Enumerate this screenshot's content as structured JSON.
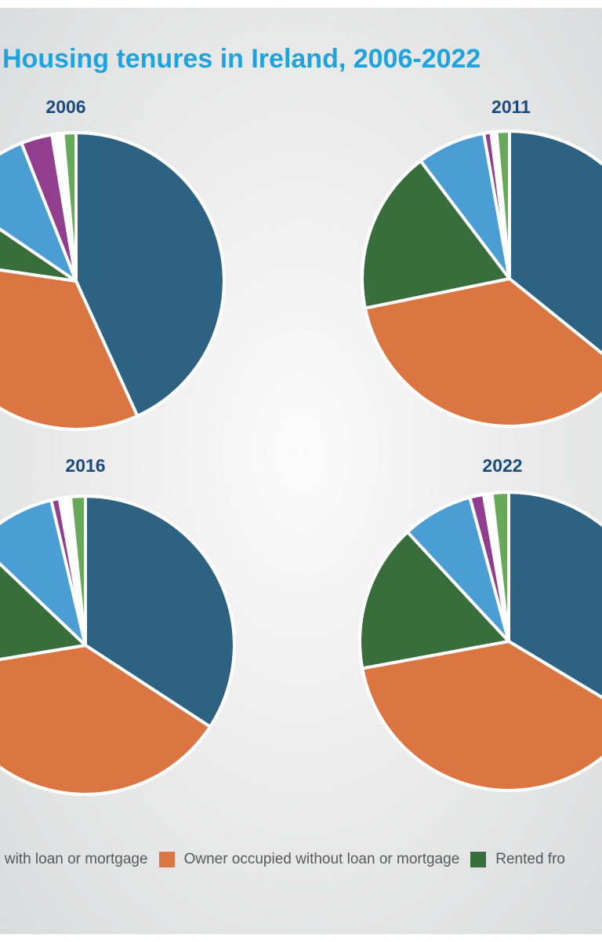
{
  "chart_data": {
    "type": "pie",
    "title": "Housing tenures in Ireland, 2006-2022",
    "legend": {
      "placement": "bottom",
      "entries": [
        {
          "label": "Owner occupied with loan or mortgage",
          "visible_text": "d with loan or mortgage",
          "color": "#2e6283"
        },
        {
          "label": "Owner occupied without loan or mortgage",
          "visible_text": "Owner occupied without loan or mortgage",
          "color": "#db7541"
        },
        {
          "label": "Rented from",
          "visible_text": "Rented fro",
          "color": "#386d3c"
        }
      ]
    },
    "categories": [
      "Owner occupied with loan or mortgage",
      "Owner occupied without loan or mortgage",
      "Rented from",
      "",
      "",
      "",
      ""
    ],
    "colors": [
      "#2e6283",
      "#db7541",
      "#386d3c",
      "#4a9ed4",
      "#923e8e",
      "#ffffff",
      "#67a85a"
    ],
    "pies": [
      {
        "year": "2006",
        "values": [
          43.2,
          34.1,
          7.2,
          9.5,
          3.4,
          1.2,
          1.4
        ]
      },
      {
        "year": "2011",
        "values": [
          35.8,
          36.0,
          17.9,
          7.5,
          0.8,
          0.6,
          1.4
        ]
      },
      {
        "year": "2016",
        "values": [
          34.2,
          38.2,
          14.7,
          9.2,
          0.9,
          1.2,
          1.6
        ]
      },
      {
        "year": "2022",
        "values": [
          33.6,
          38.5,
          16.0,
          7.7,
          1.5,
          0.9,
          1.8
        ]
      }
    ]
  }
}
